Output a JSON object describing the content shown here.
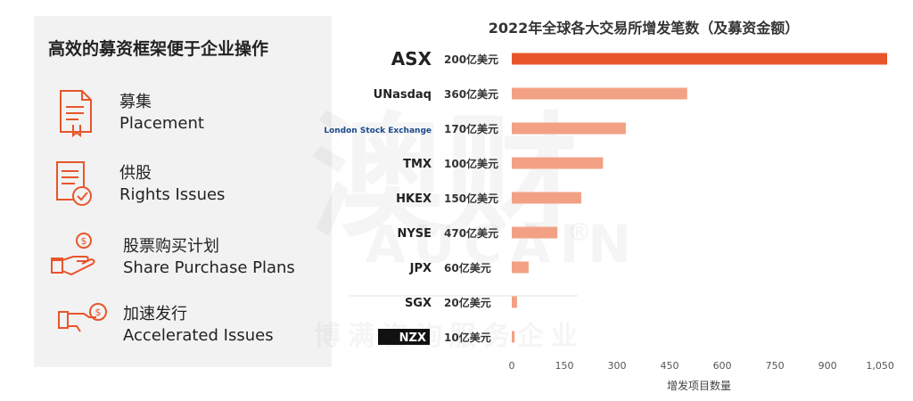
{
  "panel": {
    "title": "高效的募资框架便于企业操作",
    "methods": [
      {
        "zh": "募集",
        "en": "Placement",
        "icon": "document-icon"
      },
      {
        "zh": "供股",
        "en": "Rights Issues",
        "icon": "checklist-icon"
      },
      {
        "zh": "股票购买计划",
        "en": "Share Purchase Plans",
        "icon": "hand-dollar-icon"
      },
      {
        "zh": "加速发行",
        "en": "Accelerated Issues",
        "icon": "accelerated-money-icon"
      }
    ]
  },
  "watermark": {
    "big": "澳财",
    "sub": "AUCAIN",
    "bottom": "博满咨询服务企业",
    "reg": "®"
  },
  "colors": {
    "accent": "#e8552b",
    "bar": "#f2a184",
    "panel_bg": "#f2f2f2"
  },
  "chart_data": {
    "type": "bar",
    "orientation": "horizontal",
    "title": "2022年全球各大交易所增发笔数（及募资金额）",
    "xlabel": "增发项目数量",
    "ylabel": "",
    "xlim": [
      0,
      1100
    ],
    "xticks": [
      0,
      150,
      300,
      450,
      600,
      750,
      900,
      1050
    ],
    "xtick_labels": [
      "0",
      "150",
      "300",
      "450",
      "600",
      "750",
      "900",
      "1,050"
    ],
    "categories": [
      "ASX",
      "UNasdaq",
      "London Stock Exchange",
      "TMX",
      "HKEX",
      "NYSE",
      "JPX",
      "SGX",
      "NZX"
    ],
    "values": [
      1070,
      500,
      325,
      260,
      198,
      130,
      48,
      15,
      8
    ],
    "amount_labels": [
      "200亿美元",
      "360亿美元",
      "170亿美元",
      "100亿美元",
      "150亿美元",
      "470亿美元",
      "60亿美元",
      "20亿美元",
      "10亿美元"
    ],
    "highlight": "ASX"
  }
}
